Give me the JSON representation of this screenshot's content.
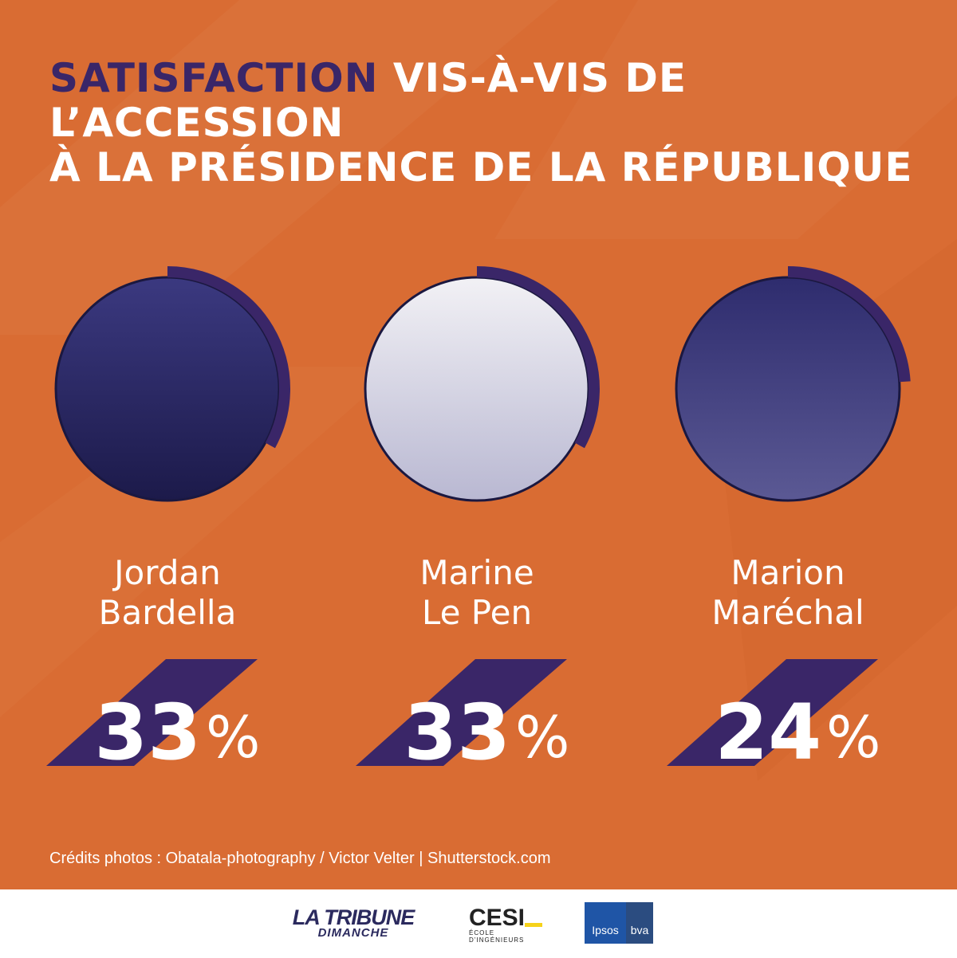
{
  "title": {
    "highlight": "SATISFACTION",
    "rest_line1": " VIS-À-VIS DE L’ACCESSION",
    "line2": "À LA PRÉSIDENCE DE LA RÉPUBLIQUE"
  },
  "colors": {
    "background": "#d96c33",
    "accent": "#3a2668",
    "text": "#ffffff"
  },
  "chart_data": {
    "type": "donut",
    "title": "SATISFACTION VIS-À-VIS DE L’ACCESSION À LA PRÉSIDENCE DE LA RÉPUBLIQUE",
    "unit": "%",
    "candidates": [
      {
        "name_line1": "Jordan",
        "name_line2": "Bardella",
        "value": 33,
        "value_label": "33"
      },
      {
        "name_line1": "Marine",
        "name_line2": "Le Pen",
        "value": 33,
        "value_label": "33"
      },
      {
        "name_line1": "Marion",
        "name_line2": "Maréchal",
        "value": 24,
        "value_label": "24"
      }
    ],
    "percent_sign": "%"
  },
  "credits": "Crédits photos : Obatala-photography / Victor Velter | Shutterstock.com",
  "footer": {
    "latribune_main": "LA TRIBUNE",
    "latribune_sub": "DIMANCHE",
    "cesi_main": "CESI",
    "cesi_sub": "ÉCOLE D’INGÉNIEURS",
    "ipsos": "Ipsos",
    "bva": "bva"
  }
}
